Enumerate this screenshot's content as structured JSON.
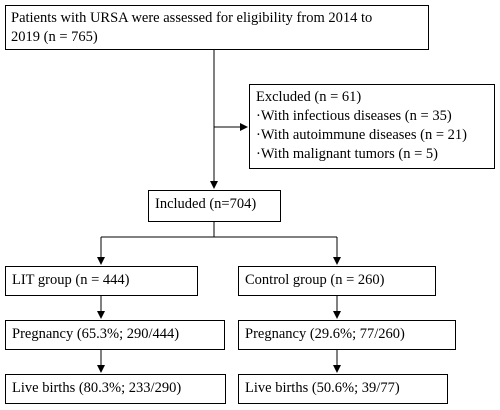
{
  "flowchart": {
    "assessed": {
      "line1": "Patients with URSA were assessed for eligibility from 2014 to",
      "line2": "2019 (n = 765)"
    },
    "excluded": {
      "title": "Excluded  (n = 61)",
      "items": [
        "·With infectious diseases (n = 35)",
        "·With autoimmune diseases (n = 21)",
        "·With malignant tumors (n = 5)"
      ]
    },
    "included": "Included  (n=704)",
    "lit": {
      "group": "LIT group (n = 444)",
      "pregnancy": "Pregnancy (65.3%; 290/444)",
      "live_births": "Live births (80.3%; 233/290)"
    },
    "control": {
      "group": "Control group (n = 260)",
      "pregnancy": "Pregnancy (29.6%; 77/260)",
      "live_births": "Live births (50.6%; 39/77)"
    }
  }
}
